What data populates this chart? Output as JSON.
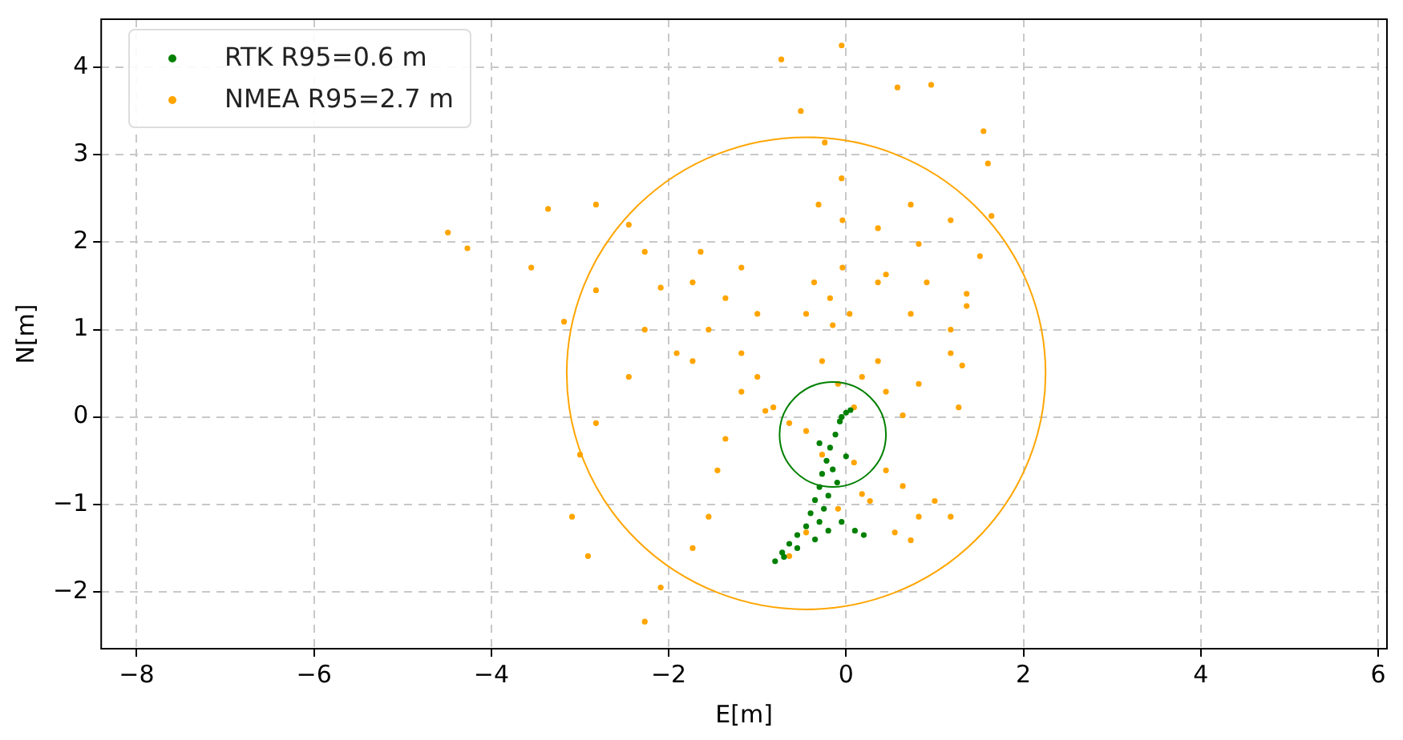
{
  "chart_data": {
    "type": "scatter",
    "xlabel": "E[m]",
    "ylabel": "N[m]",
    "xlim": [
      -8.4,
      6.1
    ],
    "ylim": [
      -2.65,
      4.55
    ],
    "xticks": [
      -8,
      -6,
      -4,
      -2,
      0,
      2,
      4,
      6
    ],
    "yticks": [
      -2,
      -1,
      0,
      1,
      2,
      3,
      4
    ],
    "grid": true,
    "legend": "top left",
    "marker": "circle",
    "series": [
      {
        "name": "RTK R95=0.6 m",
        "color": "#008000",
        "x": [
          -0.8,
          -0.72,
          -0.64,
          -0.55,
          -0.45,
          -0.4,
          -0.35,
          -0.3,
          -0.27,
          -0.22,
          -0.18,
          -0.12,
          -0.07,
          0.0,
          0.05,
          -0.05,
          -0.15,
          -0.2,
          -0.3,
          -0.55,
          -0.2,
          -0.05,
          0.1,
          0.2,
          -0.35,
          -0.7,
          -0.25,
          -0.1,
          0.0,
          -0.3
        ],
        "values": [
          -1.65,
          -1.55,
          -1.45,
          -1.35,
          -1.25,
          -1.1,
          -0.95,
          -0.8,
          -0.65,
          -0.5,
          -0.35,
          -0.2,
          -0.05,
          0.05,
          0.08,
          0.0,
          -0.6,
          -0.9,
          -1.2,
          -1.5,
          -1.3,
          -1.2,
          -1.3,
          -1.35,
          -1.4,
          -1.6,
          -1.05,
          -0.75,
          -0.45,
          -0.3
        ]
      },
      {
        "name": "NMEA R95=2.7 m",
        "color": "#ffa500",
        "x": [
          -0.73,
          -0.05,
          0.58,
          0.96,
          1.55,
          1.6,
          1.64,
          1.51,
          1.36,
          1.31,
          1.27,
          -0.51,
          -0.24,
          -0.05,
          -0.31,
          -0.04,
          -0.04,
          0.04,
          -0.15,
          -4.49,
          -4.27,
          -3.55,
          -2.82,
          -2.27,
          -1.73,
          -1.18,
          -0.82,
          -3.36,
          -2.82,
          -2.45,
          -2.91,
          -3.09,
          -3.0,
          -2.82,
          -2.45,
          -1.91,
          -2.27,
          -2.09,
          -1.73,
          -1.55,
          -1.45,
          -1.36,
          -3.18,
          -2.09,
          -2.27,
          -1.64,
          -1.18,
          -1.73,
          -1.55,
          -1.18,
          -1.0,
          -0.91,
          -0.64,
          -0.45,
          -0.27,
          0.09,
          0.45,
          0.64,
          0.27,
          -0.09,
          -0.45,
          -0.64,
          0.18,
          0.82,
          1.18,
          1.0,
          0.55,
          0.73,
          0.73,
          1.18,
          1.36,
          0.91,
          0.45,
          0.82,
          1.18,
          0.73,
          0.36,
          0.36,
          0.36,
          0.45,
          0.82,
          1.18,
          0.64,
          -1.36,
          -1.0,
          -0.45,
          -0.36,
          -0.18,
          -0.27,
          -0.09,
          0.18,
          0.09
        ],
        "values": [
          4.09,
          4.25,
          3.77,
          3.8,
          3.27,
          2.9,
          2.3,
          1.84,
          1.41,
          0.59,
          0.11,
          3.5,
          3.14,
          2.73,
          2.43,
          2.25,
          1.71,
          1.18,
          1.05,
          2.11,
          1.93,
          1.71,
          1.45,
          1.0,
          0.64,
          0.29,
          0.11,
          2.38,
          2.43,
          2.2,
          -1.59,
          -1.14,
          -0.43,
          -0.07,
          0.46,
          0.73,
          -2.34,
          -1.95,
          -1.5,
          -1.14,
          -0.61,
          -0.25,
          1.09,
          1.48,
          1.89,
          1.89,
          1.71,
          1.54,
          1.0,
          0.73,
          0.46,
          0.07,
          -0.07,
          -0.16,
          -0.43,
          -0.52,
          -0.61,
          -0.79,
          -0.96,
          -1.05,
          -1.32,
          -1.59,
          -0.88,
          -1.14,
          -1.14,
          -0.96,
          -1.32,
          -1.41,
          1.18,
          1.0,
          1.27,
          1.54,
          1.63,
          1.98,
          2.25,
          2.43,
          2.16,
          1.54,
          0.64,
          0.29,
          0.38,
          0.73,
          0.02,
          1.36,
          1.18,
          1.18,
          1.54,
          1.36,
          0.64,
          0.38,
          0.46,
          0.11
        ]
      }
    ]
  }
}
